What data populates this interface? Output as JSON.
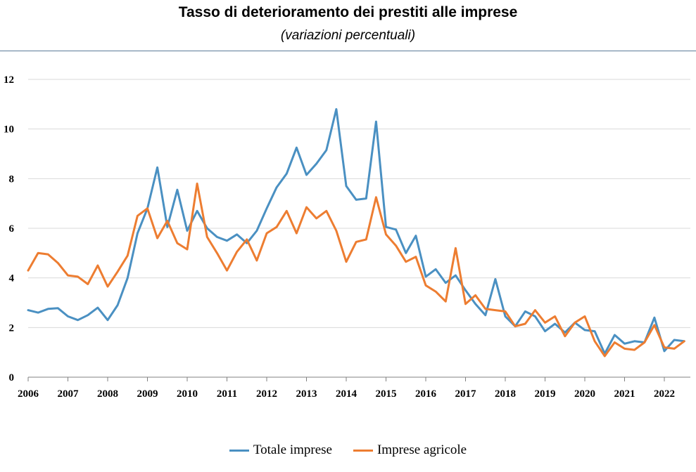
{
  "chart_data": {
    "type": "line",
    "title": "Tasso di deterioramento dei prestiti alle imprese",
    "subtitle": "(variazioni percentuali)",
    "ylim": [
      0,
      12
    ],
    "yticks": [
      0,
      2,
      4,
      6,
      8,
      10,
      12
    ],
    "xticks": [
      "2006",
      "2007",
      "2008",
      "2009",
      "2010",
      "2011",
      "2012",
      "2013",
      "2014",
      "2015",
      "2016",
      "2017",
      "2018",
      "2019",
      "2020",
      "2021",
      "2022"
    ],
    "x_start_year": 2006,
    "x_step_per_point": 0.25,
    "grid": true,
    "legend_position": "bottom",
    "series": [
      {
        "name": "Totale imprese",
        "color": "#4a90c2",
        "values": [
          2.7,
          2.6,
          2.75,
          2.78,
          2.45,
          2.3,
          2.5,
          2.8,
          2.3,
          2.9,
          4.0,
          5.8,
          6.8,
          8.45,
          6.05,
          7.55,
          5.9,
          6.7,
          6.0,
          5.65,
          5.5,
          5.75,
          5.4,
          5.9,
          6.8,
          7.65,
          8.2,
          9.25,
          8.15,
          8.6,
          9.15,
          10.8,
          7.7,
          7.15,
          7.2,
          10.3,
          6.05,
          5.95,
          5.0,
          5.7,
          4.05,
          4.35,
          3.8,
          4.1,
          3.5,
          2.95,
          2.5,
          3.95,
          2.45,
          2.05,
          2.65,
          2.45,
          1.85,
          2.15,
          1.8,
          2.2,
          1.9,
          1.85,
          0.95,
          1.7,
          1.35,
          1.45,
          1.4,
          2.4,
          1.05,
          1.5,
          1.45
        ]
      },
      {
        "name": "Imprese agricole",
        "color": "#ed7d31",
        "values": [
          4.3,
          5.0,
          4.95,
          4.6,
          4.1,
          4.05,
          3.75,
          4.5,
          3.65,
          4.25,
          4.9,
          6.5,
          6.8,
          5.6,
          6.3,
          5.4,
          5.15,
          7.8,
          5.65,
          5.0,
          4.3,
          5.05,
          5.55,
          4.7,
          5.8,
          6.05,
          6.7,
          5.8,
          6.85,
          6.4,
          6.7,
          5.9,
          4.65,
          5.45,
          5.55,
          7.25,
          5.75,
          5.3,
          4.65,
          4.85,
          3.7,
          3.45,
          3.05,
          5.2,
          2.95,
          3.3,
          2.75,
          2.7,
          2.65,
          2.05,
          2.15,
          2.7,
          2.2,
          2.45,
          1.65,
          2.2,
          2.45,
          1.45,
          0.85,
          1.4,
          1.15,
          1.1,
          1.4,
          2.1,
          1.2,
          1.15,
          1.45
        ]
      }
    ]
  }
}
